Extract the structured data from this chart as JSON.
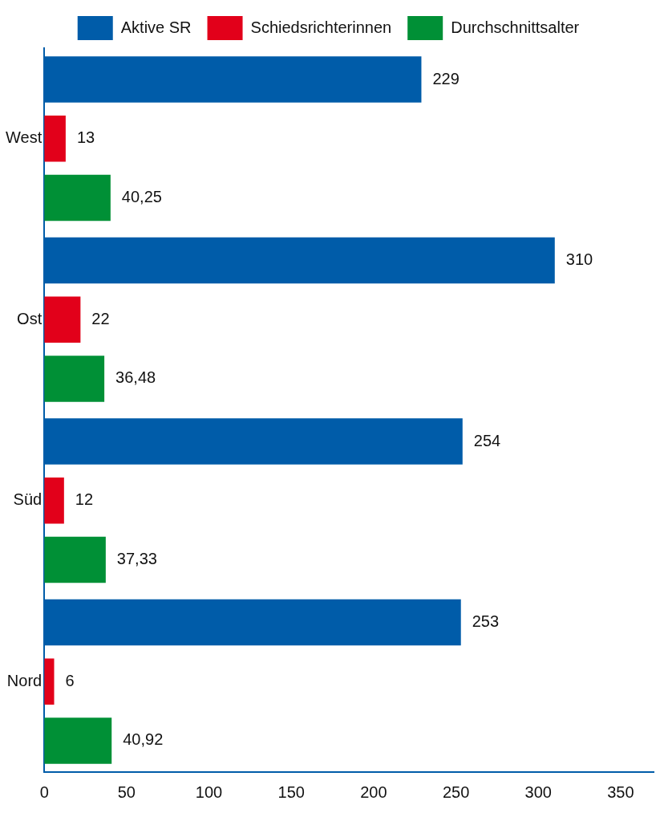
{
  "chart_data": {
    "type": "bar",
    "orientation": "horizontal",
    "categories": [
      "West",
      "Ost",
      "Süd",
      "Nord"
    ],
    "series": [
      {
        "name": "Aktive SR",
        "color": "#005ca9",
        "values": [
          229,
          310,
          254,
          253
        ],
        "value_labels": [
          "229",
          "310",
          "254",
          "253"
        ]
      },
      {
        "name": "Schiedsrichterinnen",
        "color": "#e2001a",
        "values": [
          13,
          22,
          12,
          6
        ],
        "value_labels": [
          "13",
          "22",
          "12",
          "6"
        ]
      },
      {
        "name": "Durchschnittsalter",
        "color": "#009036",
        "values": [
          40.25,
          36.48,
          37.33,
          40.92
        ],
        "value_labels": [
          "40,25",
          "36,48",
          "37,33",
          "40,92"
        ]
      }
    ],
    "xlim": [
      0,
      370
    ],
    "xticks": [
      0,
      50,
      100,
      150,
      200,
      250,
      300,
      350
    ],
    "grid": false,
    "legend": "top"
  }
}
